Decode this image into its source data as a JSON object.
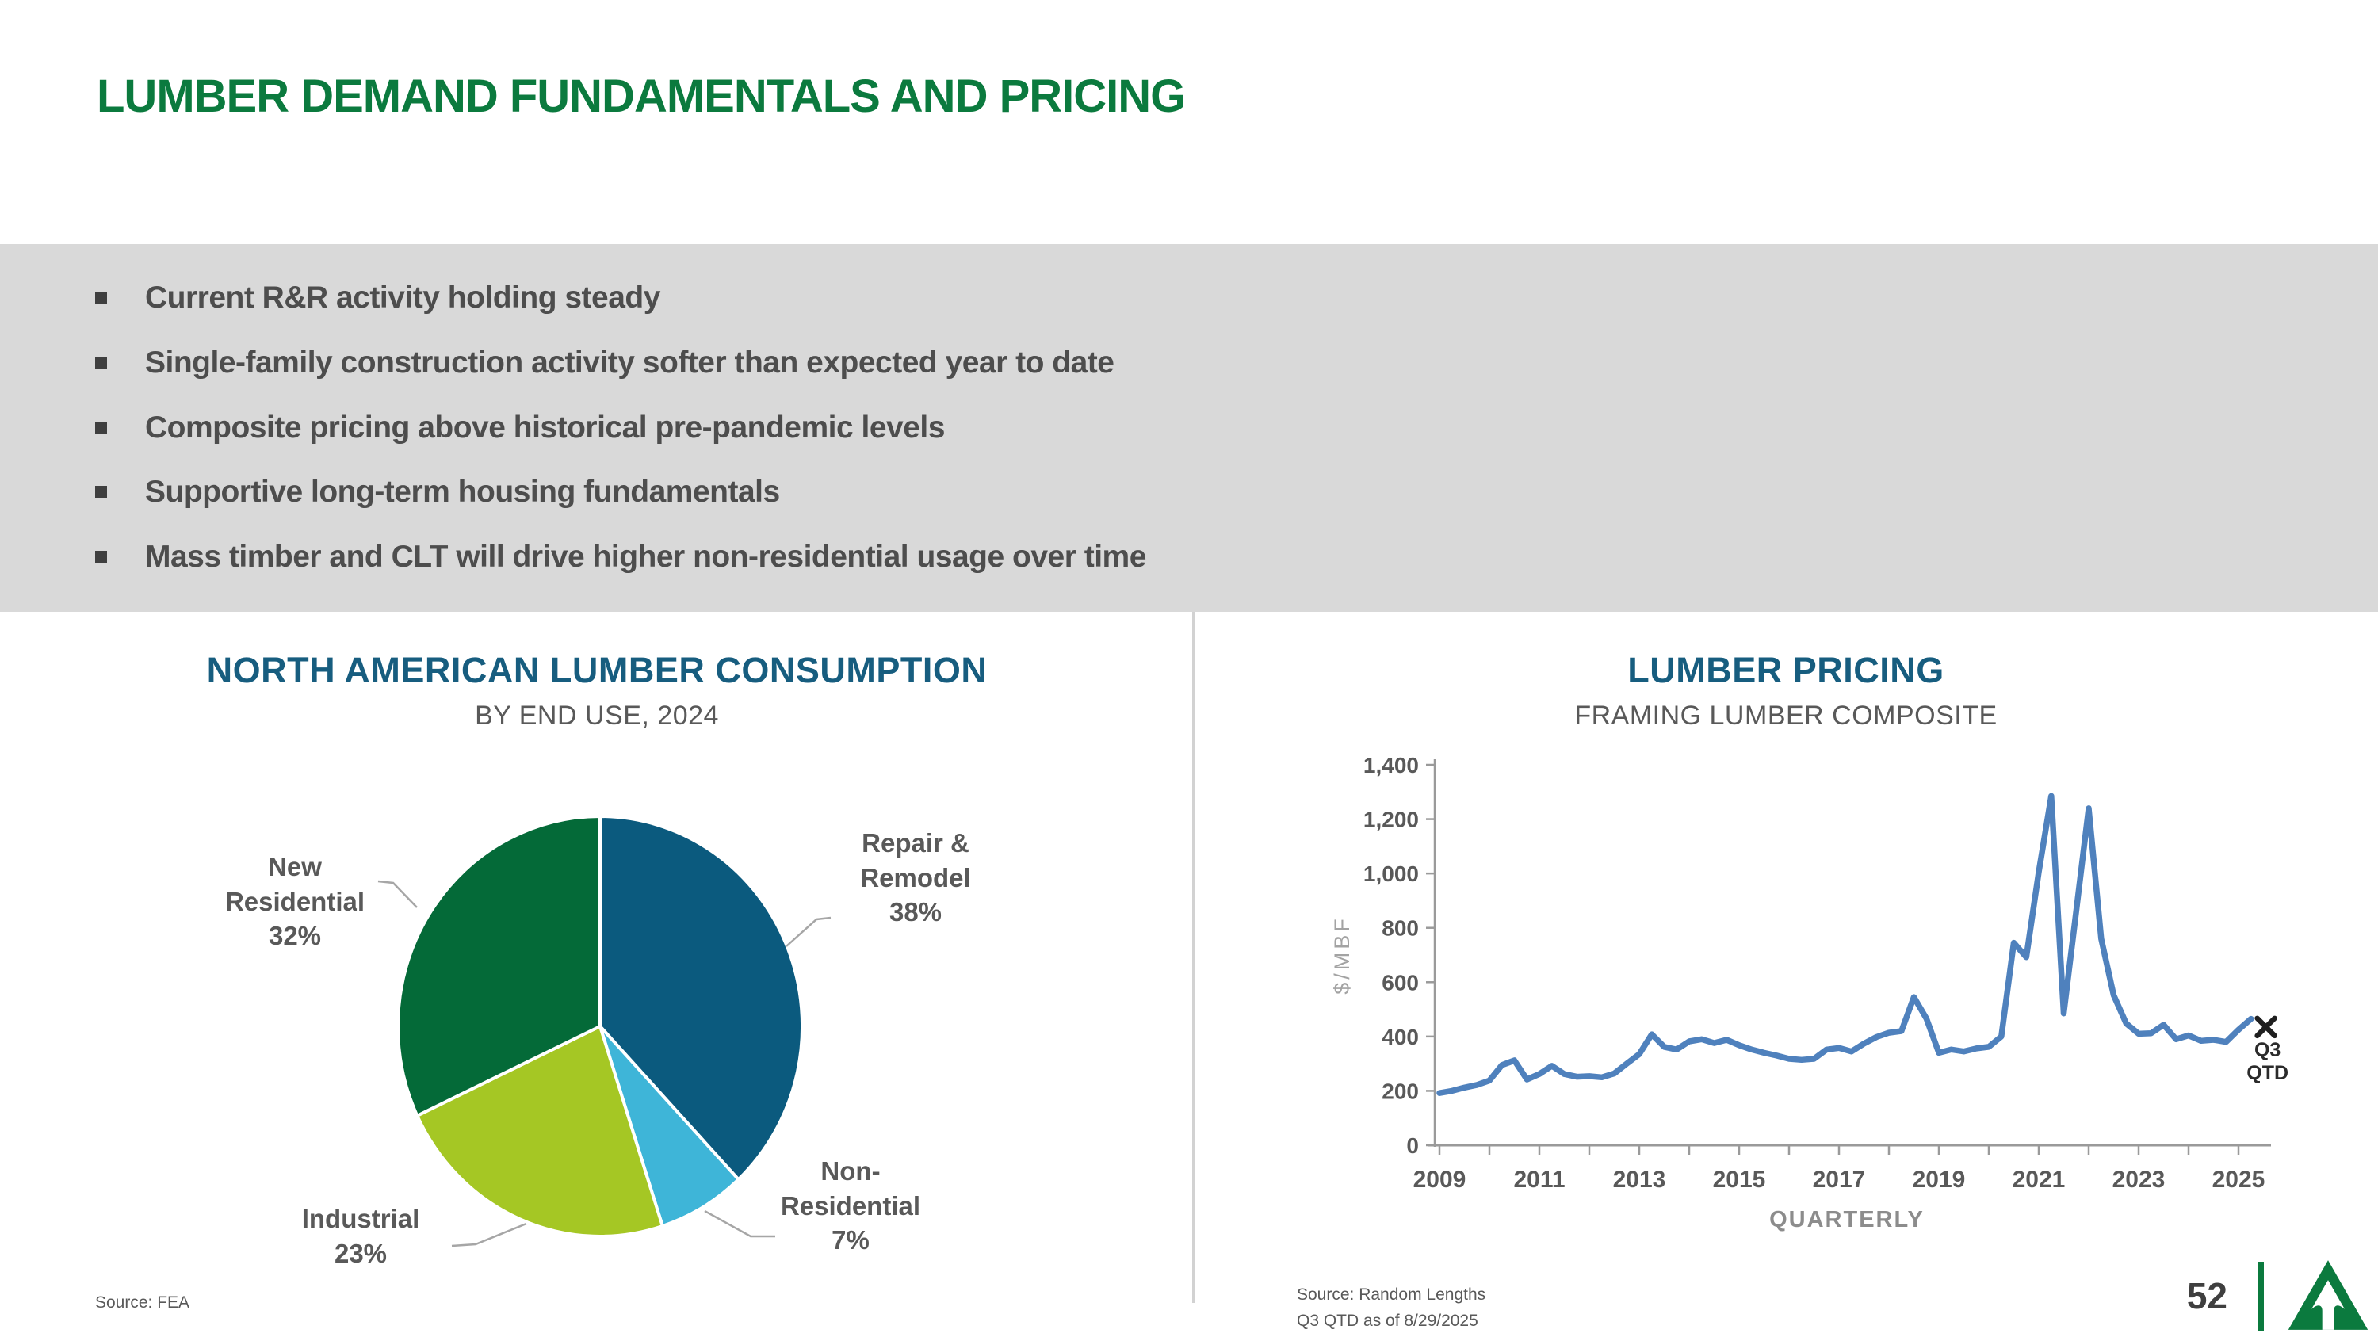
{
  "slide": {
    "title": "LUMBER DEMAND FUNDAMENTALS AND PRICING",
    "page_number": "52",
    "logo": "weyerhaeuser-triangle-arrow-logo"
  },
  "bullets": [
    "Current R&R activity holding steady",
    "Single-family construction activity softer than expected year to date",
    "Composite pricing above historical pre-pandemic levels",
    "Supportive long-term housing fundamentals",
    "Mass timber and CLT will drive higher non-residential usage over time"
  ],
  "left_chart": {
    "title": "NORTH AMERICAN LUMBER CONSUMPTION",
    "subtitle": "BY END USE, 2024",
    "source": "Source: FEA",
    "labels": {
      "repair_remodel": "Repair &\nRemodel\n38%",
      "new_residential": "New\nResidential\n32%",
      "industrial": "Industrial\n23%",
      "non_residential": "Non-\nResidential\n7%"
    }
  },
  "right_chart": {
    "title": "LUMBER PRICING",
    "subtitle": "FRAMING LUMBER COMPOSITE",
    "ylabel": "$/MBF",
    "xlabel": "QUARTERLY",
    "marker_lines": [
      "Q3",
      "QTD"
    ],
    "source_line1": "Source: Random Lengths",
    "source_line2": "Q3 QTD as of 8/29/2025"
  },
  "colors": {
    "brand_green": "#0b7a3e",
    "heading_teal": "#175d7f",
    "band_gray": "#d9d9d9",
    "text_gray": "#595959",
    "line_blue": "#4f81bd",
    "pie_repair_remodel": "#0b5a7e",
    "pie_non_residential": "#3eb5d8",
    "pie_industrial": "#a5c724",
    "pie_new_residential": "#046a38"
  },
  "chart_data": [
    {
      "type": "pie",
      "title": "NORTH AMERICAN LUMBER CONSUMPTION",
      "subtitle": "BY END USE, 2024",
      "start_angle_deg": -90,
      "direction": "clockwise",
      "slices": [
        {
          "label": "Repair & Remodel",
          "value": 38,
          "color": "#0b5a7e"
        },
        {
          "label": "Non-Residential",
          "value": 7,
          "color": "#3eb5d8"
        },
        {
          "label": "Industrial",
          "value": 23,
          "color": "#a5c724"
        },
        {
          "label": "New Residential",
          "value": 32,
          "color": "#046a38"
        }
      ]
    },
    {
      "type": "line",
      "title": "LUMBER PRICING",
      "subtitle": "FRAMING LUMBER COMPOSITE",
      "xlabel": "QUARTERLY",
      "ylabel": "$/MBF",
      "ylim": [
        0,
        1400
      ],
      "y_ticks": [
        0,
        200,
        400,
        600,
        800,
        1000,
        1200,
        1400
      ],
      "y_tick_labels": [
        "0",
        "200",
        "400",
        "600",
        "800",
        "1,000",
        "1,200",
        "1,400"
      ],
      "x_tick_years": [
        2009,
        2011,
        2013,
        2015,
        2017,
        2019,
        2021,
        2023,
        2025
      ],
      "x_start_year": 2009,
      "x_step_years": 0.25,
      "line_color": "#4f81bd",
      "values": [
        192,
        200,
        212,
        222,
        238,
        295,
        312,
        242,
        262,
        292,
        262,
        252,
        254,
        250,
        264,
        300,
        335,
        408,
        362,
        352,
        382,
        390,
        376,
        388,
        368,
        352,
        340,
        330,
        318,
        314,
        318,
        352,
        358,
        345,
        374,
        398,
        414,
        420,
        545,
        466,
        340,
        352,
        345,
        356,
        362,
        400,
        745,
        692,
        1005,
        1285,
        485,
        862,
        1240,
        760,
        552,
        448,
        410,
        412,
        443,
        390,
        404,
        384,
        388,
        380,
        425,
        465
      ],
      "marker": {
        "label": "Q3 QTD",
        "x_year": 2025.55,
        "value": 435,
        "symbol": "x"
      }
    }
  ]
}
